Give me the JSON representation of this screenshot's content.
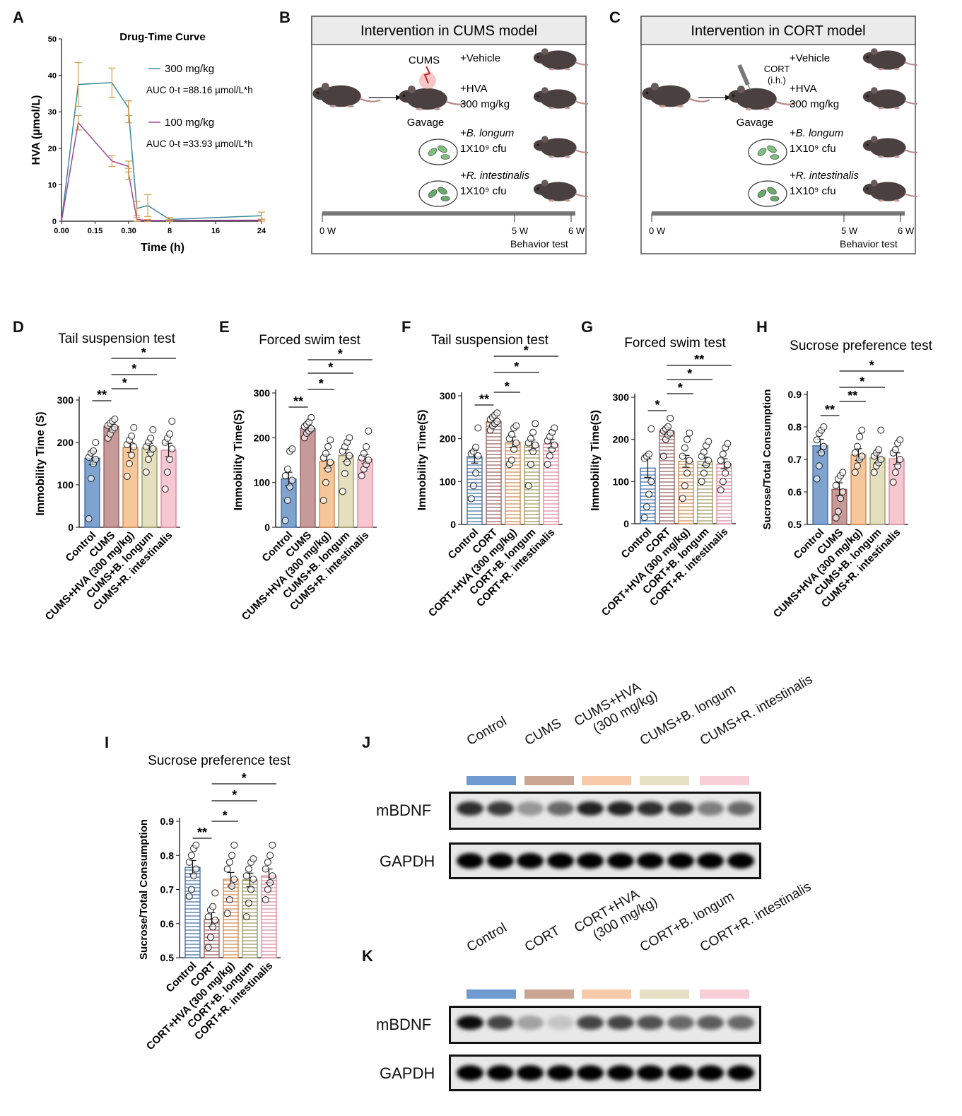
{
  "panels": {
    "A": "A",
    "B": "B",
    "C": "C",
    "D": "D",
    "E": "E",
    "F": "F",
    "G": "G",
    "H": "H",
    "I": "I",
    "J": "J",
    "K": "K"
  },
  "panelA": {
    "title": "Drug-Time Curve",
    "ylabel": "HVA (µmol/L)",
    "xlabel": "Time (h)",
    "yticks": [
      "0",
      "10",
      "20",
      "30",
      "40",
      "50"
    ],
    "xticks_left": [
      "0.00",
      "0.15",
      "0.30"
    ],
    "xticks_right": [
      "8",
      "16",
      "24"
    ],
    "legend": [
      {
        "name": "300 mg/kg",
        "auc": "AUC 0-t =88.16 µmol/L*h",
        "color": "#3a8a9a"
      },
      {
        "name": "100 mg/kg",
        "auc": "AUC 0-t =33.93 µmol/L*h",
        "color": "#a0449a"
      }
    ],
    "errcolor": "#d69a4a"
  },
  "chart_data": [
    {
      "panel": "A",
      "type": "line",
      "title": "Drug-Time Curve",
      "xlabel": "Time (h)",
      "ylabel": "HVA (µmol/L)",
      "ylim": [
        0,
        50
      ],
      "series": [
        {
          "name": "300 mg/kg",
          "x": [
            0,
            0.083,
            0.25,
            0.333,
            0.5,
            2,
            4,
            8,
            24
          ],
          "y": [
            0,
            37.5,
            38,
            31,
            30,
            3.5,
            4.3,
            0.5,
            1.5
          ],
          "err": [
            0,
            6,
            4,
            2,
            3,
            2,
            3,
            0.5,
            1
          ]
        },
        {
          "name": "100 mg/kg",
          "x": [
            0,
            0.083,
            0.25,
            0.333,
            0.5,
            2,
            4,
            8,
            24
          ],
          "y": [
            0,
            27,
            16.5,
            15,
            13,
            0.5,
            0.2,
            0.2,
            0.3
          ],
          "err": [
            0,
            2,
            1.5,
            1.5,
            1.5,
            0.5,
            0.3,
            0.2,
            0.3
          ]
        }
      ]
    },
    {
      "panel": "D",
      "type": "bar",
      "title": "Tail suspension test",
      "ylabel": "Immobility Time (S)",
      "ylim": [
        0,
        300
      ],
      "yticks": [
        0,
        100,
        200,
        300
      ],
      "categories": [
        "Control",
        "CUMS",
        "CUMS+HVA (300 mg/kg)",
        "CUMS+B. longum",
        "CUMS+R. intestinalis"
      ],
      "values": [
        163,
        238,
        188,
        187,
        182
      ],
      "sem": [
        15,
        8,
        12,
        11,
        16
      ],
      "points": [
        [
          20,
          115,
          150,
          160,
          165,
          175,
          180,
          200
        ],
        [
          210,
          220,
          230,
          235,
          240,
          245,
          250,
          255
        ],
        [
          120,
          150,
          170,
          190,
          195,
          205,
          215,
          235
        ],
        [
          130,
          160,
          175,
          185,
          190,
          200,
          210,
          230
        ],
        [
          90,
          130,
          160,
          185,
          200,
          210,
          220,
          250
        ]
      ],
      "sig": [
        {
          "a": 0,
          "b": 1,
          "label": "**"
        },
        {
          "a": 1,
          "b": 2,
          "label": "*"
        },
        {
          "a": 1,
          "b": 3,
          "label": "*"
        },
        {
          "a": 1,
          "b": 4,
          "label": "*"
        }
      ]
    },
    {
      "panel": "E",
      "type": "bar",
      "title": "Forced swim test",
      "ylabel": "Immobility Time(S)",
      "ylim": [
        0,
        300
      ],
      "yticks": [
        0,
        100,
        200,
        300
      ],
      "categories": [
        "Control",
        "CUMS",
        "CUMS+HVA (300 mg/kg)",
        "CUMS+B. longum",
        "CUMS+R. intestinalis"
      ],
      "values": [
        108,
        221,
        147,
        160,
        152
      ],
      "sem": [
        15,
        8,
        15,
        13,
        10
      ],
      "points": [
        [
          15,
          60,
          90,
          105,
          115,
          130,
          170,
          175
        ],
        [
          200,
          210,
          215,
          220,
          225,
          230,
          235,
          245
        ],
        [
          60,
          100,
          130,
          145,
          155,
          165,
          180,
          195
        ],
        [
          80,
          120,
          145,
          160,
          170,
          180,
          190,
          200
        ],
        [
          115,
          130,
          140,
          150,
          155,
          165,
          180,
          215
        ]
      ],
      "sig": [
        {
          "a": 0,
          "b": 1,
          "label": "**"
        },
        {
          "a": 1,
          "b": 2,
          "label": "*"
        },
        {
          "a": 1,
          "b": 3,
          "label": "*"
        },
        {
          "a": 1,
          "b": 4,
          "label": "*"
        }
      ]
    },
    {
      "panel": "F",
      "type": "bar",
      "title": "Tail suspension test",
      "ylabel": "Immobility Time(S)",
      "ylim": [
        0,
        300
      ],
      "yticks": [
        0,
        100,
        200,
        300
      ],
      "categories": [
        "Control",
        "CORT",
        "CORT+HVA (300 mg/kg)",
        "CORT+B. longum",
        "CORT+R. intestinalis"
      ],
      "values": [
        158,
        240,
        192,
        185,
        188
      ],
      "sem": [
        15,
        8,
        12,
        12,
        10
      ],
      "points": [
        [
          60,
          90,
          120,
          160,
          165,
          170,
          180,
          225
        ],
        [
          220,
          230,
          235,
          240,
          245,
          250,
          255,
          260
        ],
        [
          140,
          150,
          175,
          190,
          200,
          210,
          225,
          230
        ],
        [
          90,
          140,
          170,
          185,
          190,
          200,
          215,
          235
        ],
        [
          140,
          160,
          175,
          185,
          195,
          205,
          215,
          225
        ]
      ],
      "sig": [
        {
          "a": 0,
          "b": 1,
          "label": "**"
        },
        {
          "a": 1,
          "b": 2,
          "label": "*"
        },
        {
          "a": 1,
          "b": 3,
          "label": "*"
        },
        {
          "a": 1,
          "b": 4,
          "label": "*"
        }
      ]
    },
    {
      "panel": "G",
      "type": "bar",
      "title": "Forced swim test",
      "ylabel": "Immobility Time(S)",
      "ylim": [
        0,
        300
      ],
      "yticks": [
        0,
        100,
        200,
        300
      ],
      "categories": [
        "Control",
        "CORT",
        "CORT+HVA (300 mg/kg)",
        "CORT+B. longum",
        "CORT+R. intestinalis"
      ],
      "values": [
        132,
        220,
        148,
        148,
        142
      ],
      "sem": [
        22,
        8,
        14,
        10,
        12
      ],
      "points": [
        [
          15,
          40,
          70,
          100,
          155,
          160,
          165,
          225
        ],
        [
          160,
          200,
          210,
          215,
          220,
          225,
          230,
          250
        ],
        [
          60,
          90,
          120,
          150,
          160,
          180,
          200,
          215
        ],
        [
          100,
          120,
          140,
          150,
          160,
          170,
          185,
          195
        ],
        [
          80,
          100,
          120,
          140,
          150,
          165,
          180,
          190
        ]
      ],
      "sig": [
        {
          "a": 0,
          "b": 1,
          "label": "*"
        },
        {
          "a": 1,
          "b": 2,
          "label": "*"
        },
        {
          "a": 1,
          "b": 3,
          "label": "*"
        },
        {
          "a": 1,
          "b": 4,
          "label": "**"
        }
      ]
    },
    {
      "panel": "H",
      "type": "bar",
      "title": "Sucrose preference test",
      "ylabel": "Sucrose/Total Consumption",
      "ylim": [
        0.5,
        0.9
      ],
      "yticks": [
        0.5,
        0.6,
        0.7,
        0.8,
        0.9
      ],
      "categories": [
        "Control",
        "CUMS",
        "CUMS+HVA (300 mg/kg)",
        "CUMS+B. longum",
        "CUMS+R. intestinalis"
      ],
      "values": [
        0.742,
        0.608,
        0.715,
        0.705,
        0.702
      ],
      "sem": [
        0.02,
        0.02,
        0.018,
        0.015,
        0.018
      ],
      "points": [
        [
          0.64,
          0.68,
          0.72,
          0.74,
          0.76,
          0.78,
          0.79,
          0.8
        ],
        [
          0.52,
          0.54,
          0.58,
          0.6,
          0.62,
          0.64,
          0.65,
          0.66
        ],
        [
          0.66,
          0.68,
          0.7,
          0.71,
          0.72,
          0.74,
          0.77,
          0.79
        ],
        [
          0.66,
          0.68,
          0.69,
          0.7,
          0.71,
          0.72,
          0.73,
          0.79
        ],
        [
          0.63,
          0.66,
          0.68,
          0.7,
          0.72,
          0.73,
          0.75,
          0.76
        ]
      ],
      "sig": [
        {
          "a": 0,
          "b": 1,
          "label": "**"
        },
        {
          "a": 1,
          "b": 2,
          "label": "**"
        },
        {
          "a": 1,
          "b": 3,
          "label": "*"
        },
        {
          "a": 1,
          "b": 4,
          "label": "*"
        }
      ]
    },
    {
      "panel": "I",
      "type": "bar",
      "title": "Sucrose preference test",
      "ylabel": "Sucrose/Total Consumption",
      "ylim": [
        0.5,
        0.9
      ],
      "yticks": [
        0.5,
        0.6,
        0.7,
        0.8,
        0.9
      ],
      "categories": [
        "Control",
        "CORT",
        "CORT+HVA (300 mg/kg)",
        "CORT+B. longum",
        "CORT+R. intestinalis"
      ],
      "values": [
        0.765,
        0.612,
        0.73,
        0.728,
        0.74
      ],
      "sem": [
        0.02,
        0.02,
        0.02,
        0.02,
        0.02
      ],
      "points": [
        [
          0.68,
          0.7,
          0.74,
          0.76,
          0.78,
          0.8,
          0.82,
          0.83
        ],
        [
          0.53,
          0.56,
          0.59,
          0.61,
          0.62,
          0.64,
          0.65,
          0.69
        ],
        [
          0.63,
          0.67,
          0.71,
          0.73,
          0.76,
          0.78,
          0.8,
          0.83
        ],
        [
          0.62,
          0.66,
          0.7,
          0.73,
          0.74,
          0.76,
          0.78,
          0.79
        ],
        [
          0.67,
          0.7,
          0.72,
          0.74,
          0.76,
          0.78,
          0.8,
          0.83
        ]
      ],
      "sig": [
        {
          "a": 0,
          "b": 1,
          "label": "**"
        },
        {
          "a": 1,
          "b": 2,
          "label": "*"
        },
        {
          "a": 1,
          "b": 3,
          "label": "*"
        },
        {
          "a": 1,
          "b": 4,
          "label": "*"
        }
      ]
    }
  ],
  "bar_colors": [
    {
      "fill": "#7ea3cf",
      "stroke": "#2f5fa0"
    },
    {
      "fill": "#c79a9a",
      "stroke": "#8a5050"
    },
    {
      "fill": "#f6c79a",
      "stroke": "#d07a3a"
    },
    {
      "fill": "#e3dfbf",
      "stroke": "#8f8a55"
    },
    {
      "fill": "#f7c7d1",
      "stroke": "#d87a90"
    }
  ],
  "panelB": {
    "header": "Intervention in CUMS model",
    "stressor": "CUMS",
    "gavage": "Gavage",
    "groups": [
      {
        "line1": "+Vehicle",
        "line2": ""
      },
      {
        "line1": "+HVA",
        "line2": "300 mg/kg"
      },
      {
        "line1": "+B. longum",
        "line2": "1X10⁹ cfu"
      },
      {
        "line1": "+R. intestinalis",
        "line2": "1X10⁹ cfu"
      }
    ],
    "timeline": [
      "0 W",
      "5 W",
      "6 W"
    ],
    "behavior": "Behavior test"
  },
  "panelC": {
    "header": "Intervention in CORT model",
    "stressor": "CORT",
    "stressor_route": "(i.h.)",
    "gavage": "Gavage",
    "groups": [
      {
        "line1": "+Vehicle",
        "line2": ""
      },
      {
        "line1": "+HVA",
        "line2": "300 mg/kg"
      },
      {
        "line1": "+B. longum",
        "line2": "1X10⁹ cfu"
      },
      {
        "line1": "+R. intestinalis",
        "line2": "1X10⁹ cfu"
      }
    ],
    "timeline": [
      "0 W",
      "5 W",
      "6 W"
    ],
    "behavior": "Behavior test"
  },
  "panelJ": {
    "lanes": [
      "Control",
      "CUMS",
      "CUMS+HVA\n(300 mg/kg)",
      "CUMS+B. longum",
      "CUMS+R. intestinalis"
    ],
    "lane_colors": [
      "#6f9bd0",
      "#caa592",
      "#f7cba9",
      "#e5dfc3",
      "#f8cfd6"
    ],
    "blots": [
      "mBDNF",
      "GAPDH"
    ]
  },
  "panelK": {
    "lanes": [
      "Control",
      "CORT",
      "CORT+HVA\n(300 mg/kg)",
      "CORT+B. longum",
      "CORT+R. intestinalis"
    ],
    "lane_colors": [
      "#6f9bd0",
      "#caa592",
      "#f7cba9",
      "#e5dfc3",
      "#f8cfd6"
    ],
    "blots": [
      "mBDNF",
      "GAPDH"
    ]
  }
}
